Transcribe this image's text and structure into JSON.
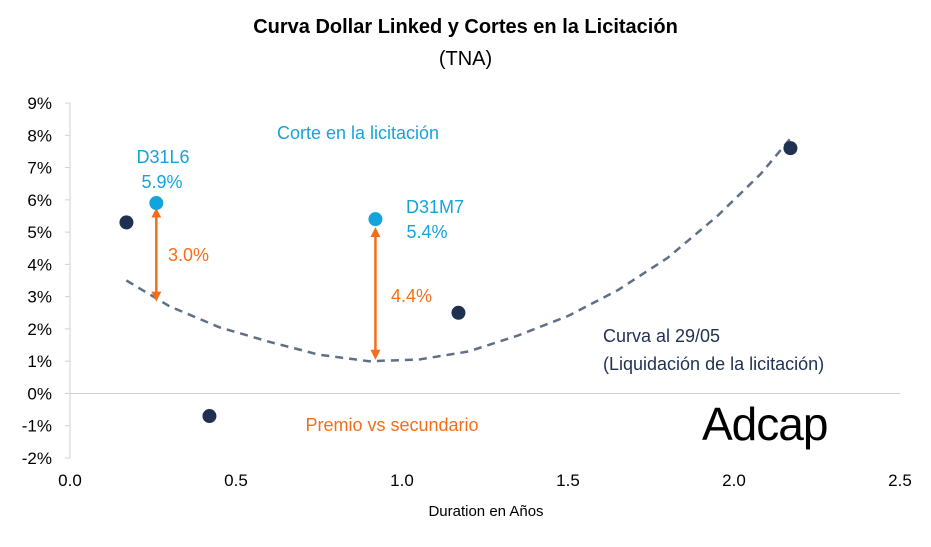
{
  "chart_data": {
    "type": "scatter",
    "title": "Curva Dollar Linked y Cortes en la Licitación",
    "subtitle": "(TNA)",
    "xlabel": "Duration en Años",
    "ylabel": "",
    "xlim": [
      0,
      2.5
    ],
    "ylim": [
      -2,
      9
    ],
    "x_ticks": [
      "0.0",
      "0.5",
      "1.0",
      "1.5",
      "2.0",
      "2.5"
    ],
    "x_tick_values": [
      0,
      0.5,
      1.0,
      1.5,
      2.0,
      2.5
    ],
    "y_ticks": [
      "-2%",
      "-1%",
      "0%",
      "1%",
      "2%",
      "3%",
      "4%",
      "5%",
      "6%",
      "7%",
      "8%",
      "9%"
    ],
    "y_tick_values": [
      -2,
      -1,
      0,
      1,
      2,
      3,
      4,
      5,
      6,
      7,
      8,
      9
    ],
    "grid": false,
    "series": [
      {
        "name": "",
        "color": "#1f3050",
        "points": [
          {
            "x": 0.17,
            "y": 5.3
          },
          {
            "x": 0.42,
            "y": -0.7
          },
          {
            "x": 1.17,
            "y": 2.5
          },
          {
            "x": 2.17,
            "y": 7.6
          }
        ]
      },
      {
        "name": "Corte en la licitación",
        "color": "#14a4dc",
        "points": [
          {
            "x": 0.26,
            "y": 5.9
          },
          {
            "x": 0.92,
            "y": 5.4
          }
        ]
      }
    ],
    "curve": {
      "name": "Curva al 29/05",
      "color": "#5f6f86",
      "style": "dashed",
      "points": [
        {
          "x": 0.17,
          "y": 3.5
        },
        {
          "x": 0.3,
          "y": 2.7
        },
        {
          "x": 0.45,
          "y": 2.05
        },
        {
          "x": 0.6,
          "y": 1.6
        },
        {
          "x": 0.75,
          "y": 1.2
        },
        {
          "x": 0.9,
          "y": 1.0
        },
        {
          "x": 1.05,
          "y": 1.05
        },
        {
          "x": 1.2,
          "y": 1.3
        },
        {
          "x": 1.35,
          "y": 1.8
        },
        {
          "x": 1.5,
          "y": 2.4
        },
        {
          "x": 1.65,
          "y": 3.2
        },
        {
          "x": 1.8,
          "y": 4.2
        },
        {
          "x": 1.95,
          "y": 5.5
        },
        {
          "x": 2.08,
          "y": 6.8
        },
        {
          "x": 2.17,
          "y": 7.9
        }
      ]
    },
    "arrows": [
      {
        "x": 0.26,
        "y_from": 3.0,
        "y_to": 5.6,
        "label": "3.0%",
        "color": "#f26f1a"
      },
      {
        "x": 0.92,
        "y_from": 1.2,
        "y_to": 5.0,
        "label": "4.4%",
        "color": "#f26f1a"
      }
    ],
    "annotations": {
      "corte_label": "Corte en la licitación",
      "d31l6_name": "D31L6",
      "d31l6_value": "5.9%",
      "d31m7_name": "D31M7",
      "d31m7_value": "5.4%",
      "curva_line1": "Curva al 29/05",
      "curva_line2": "(Liquidación de la licitación)",
      "premio_label": "Premio vs secundario",
      "logo": "Adcap"
    },
    "colors": {
      "blue": "#14a4dc",
      "navy": "#1f3050",
      "orange": "#f26f1a",
      "curve": "#5f6f86"
    }
  }
}
